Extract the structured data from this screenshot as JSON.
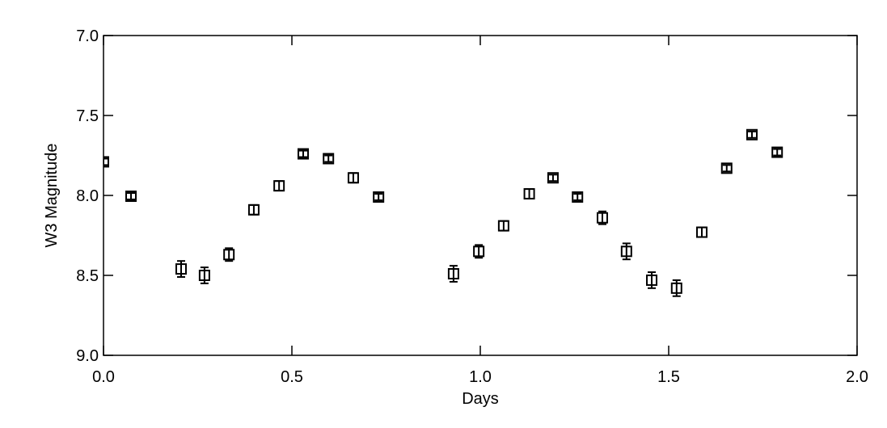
{
  "chart_data": {
    "type": "scatter",
    "xlabel": "Days",
    "ylabel": "W3 Magnitude",
    "xlim": [
      0.0,
      2.0
    ],
    "xticks": [
      {
        "value": 0,
        "label": "0.0"
      },
      {
        "value": 0.5,
        "label": "0.5"
      },
      {
        "value": 1,
        "label": "1.0"
      },
      {
        "value": 1.5,
        "label": "1.5"
      },
      {
        "value": 2,
        "label": "2.0"
      }
    ],
    "ylim": [
      9.0,
      7.0
    ],
    "yticks": [
      {
        "value": 7,
        "label": "7.0"
      },
      {
        "value": 7.5,
        "label": "7.5"
      },
      {
        "value": 8,
        "label": "8.0"
      },
      {
        "value": 8.5,
        "label": "8.5"
      },
      {
        "value": 9,
        "label": "9.0"
      }
    ],
    "color": "#000000",
    "x": [
      0.0,
      0.073,
      0.206,
      0.268,
      0.333,
      0.399,
      0.466,
      0.53,
      0.597,
      0.663,
      0.73,
      0.929,
      0.996,
      1.062,
      1.13,
      1.193,
      1.258,
      1.324,
      1.388,
      1.455,
      1.521,
      1.588,
      1.654,
      1.721,
      1.788
    ],
    "values": [
      7.79,
      8.005,
      8.46,
      8.5,
      8.37,
      8.09,
      7.94,
      7.74,
      7.77,
      7.89,
      8.01,
      8.49,
      8.35,
      8.19,
      7.99,
      7.89,
      8.01,
      8.14,
      8.35,
      8.53,
      8.58,
      8.23,
      7.83,
      7.62,
      7.73
    ],
    "errors": [
      0.02,
      0.02,
      0.05,
      0.05,
      0.04,
      0.03,
      0.03,
      0.02,
      0.02,
      0.03,
      0.02,
      0.05,
      0.04,
      0.03,
      0.03,
      0.02,
      0.02,
      0.04,
      0.05,
      0.05,
      0.05,
      0.03,
      0.02,
      0.02,
      0.02
    ]
  }
}
